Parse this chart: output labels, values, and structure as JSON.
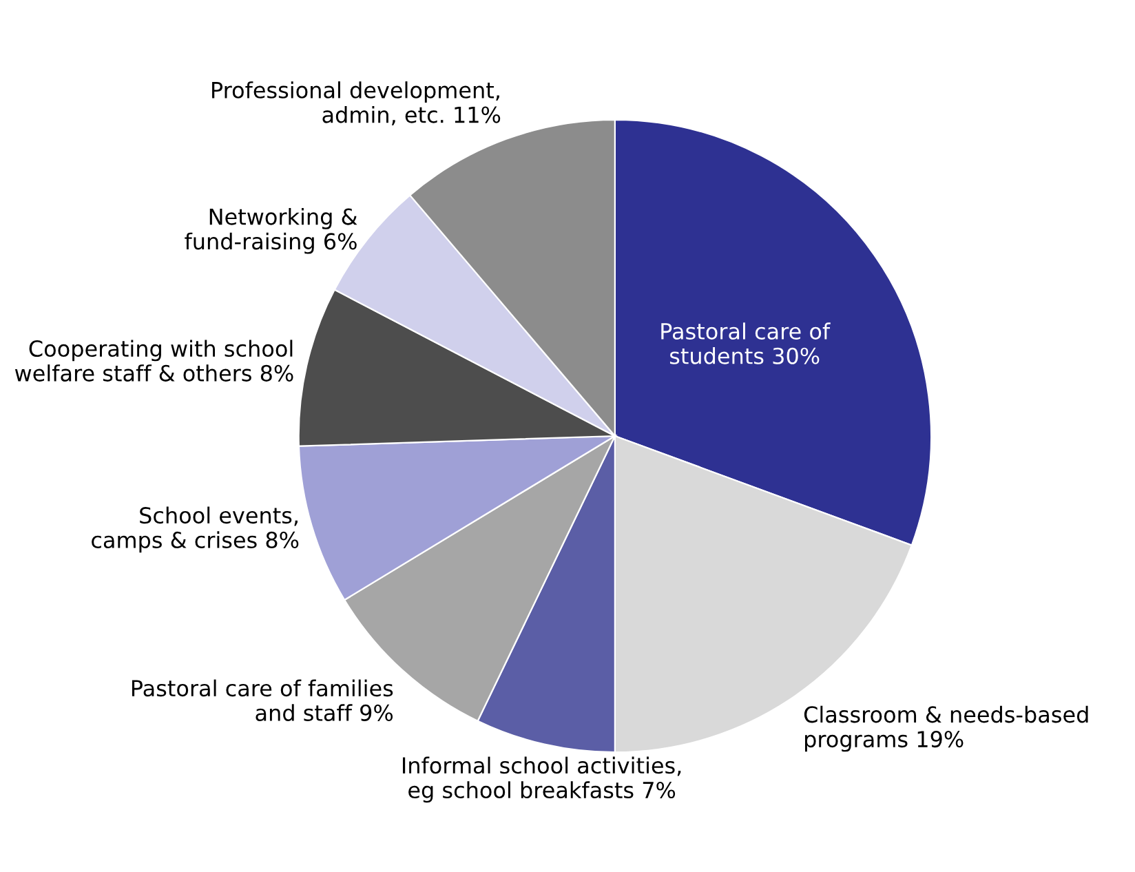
{
  "chart_data": {
    "type": "pie",
    "categories": [
      "Pastoral care of\nstudents",
      "Classroom & needs-based\nprograms",
      "Informal school activities,\neg school breakfasts",
      "Pastoral care of families\nand staff",
      "School events,\ncamps & crises",
      "Cooperating with school\nwelfare staff & others",
      "Networking &\nfund-raising",
      "Professional development,\nadmin, etc."
    ],
    "values": [
      30,
      19,
      7,
      9,
      8,
      8,
      6,
      11
    ],
    "value_labels": [
      "30%",
      "19%",
      "7%",
      "9%",
      "8%",
      "8%",
      "6%",
      "11%"
    ],
    "colors": [
      "#2e3192",
      "#d9d9d9",
      "#5b5ea6",
      "#a6a6a6",
      "#9fa0d6",
      "#4d4d4d",
      "#d0d0ec",
      "#8c8c8c"
    ]
  }
}
